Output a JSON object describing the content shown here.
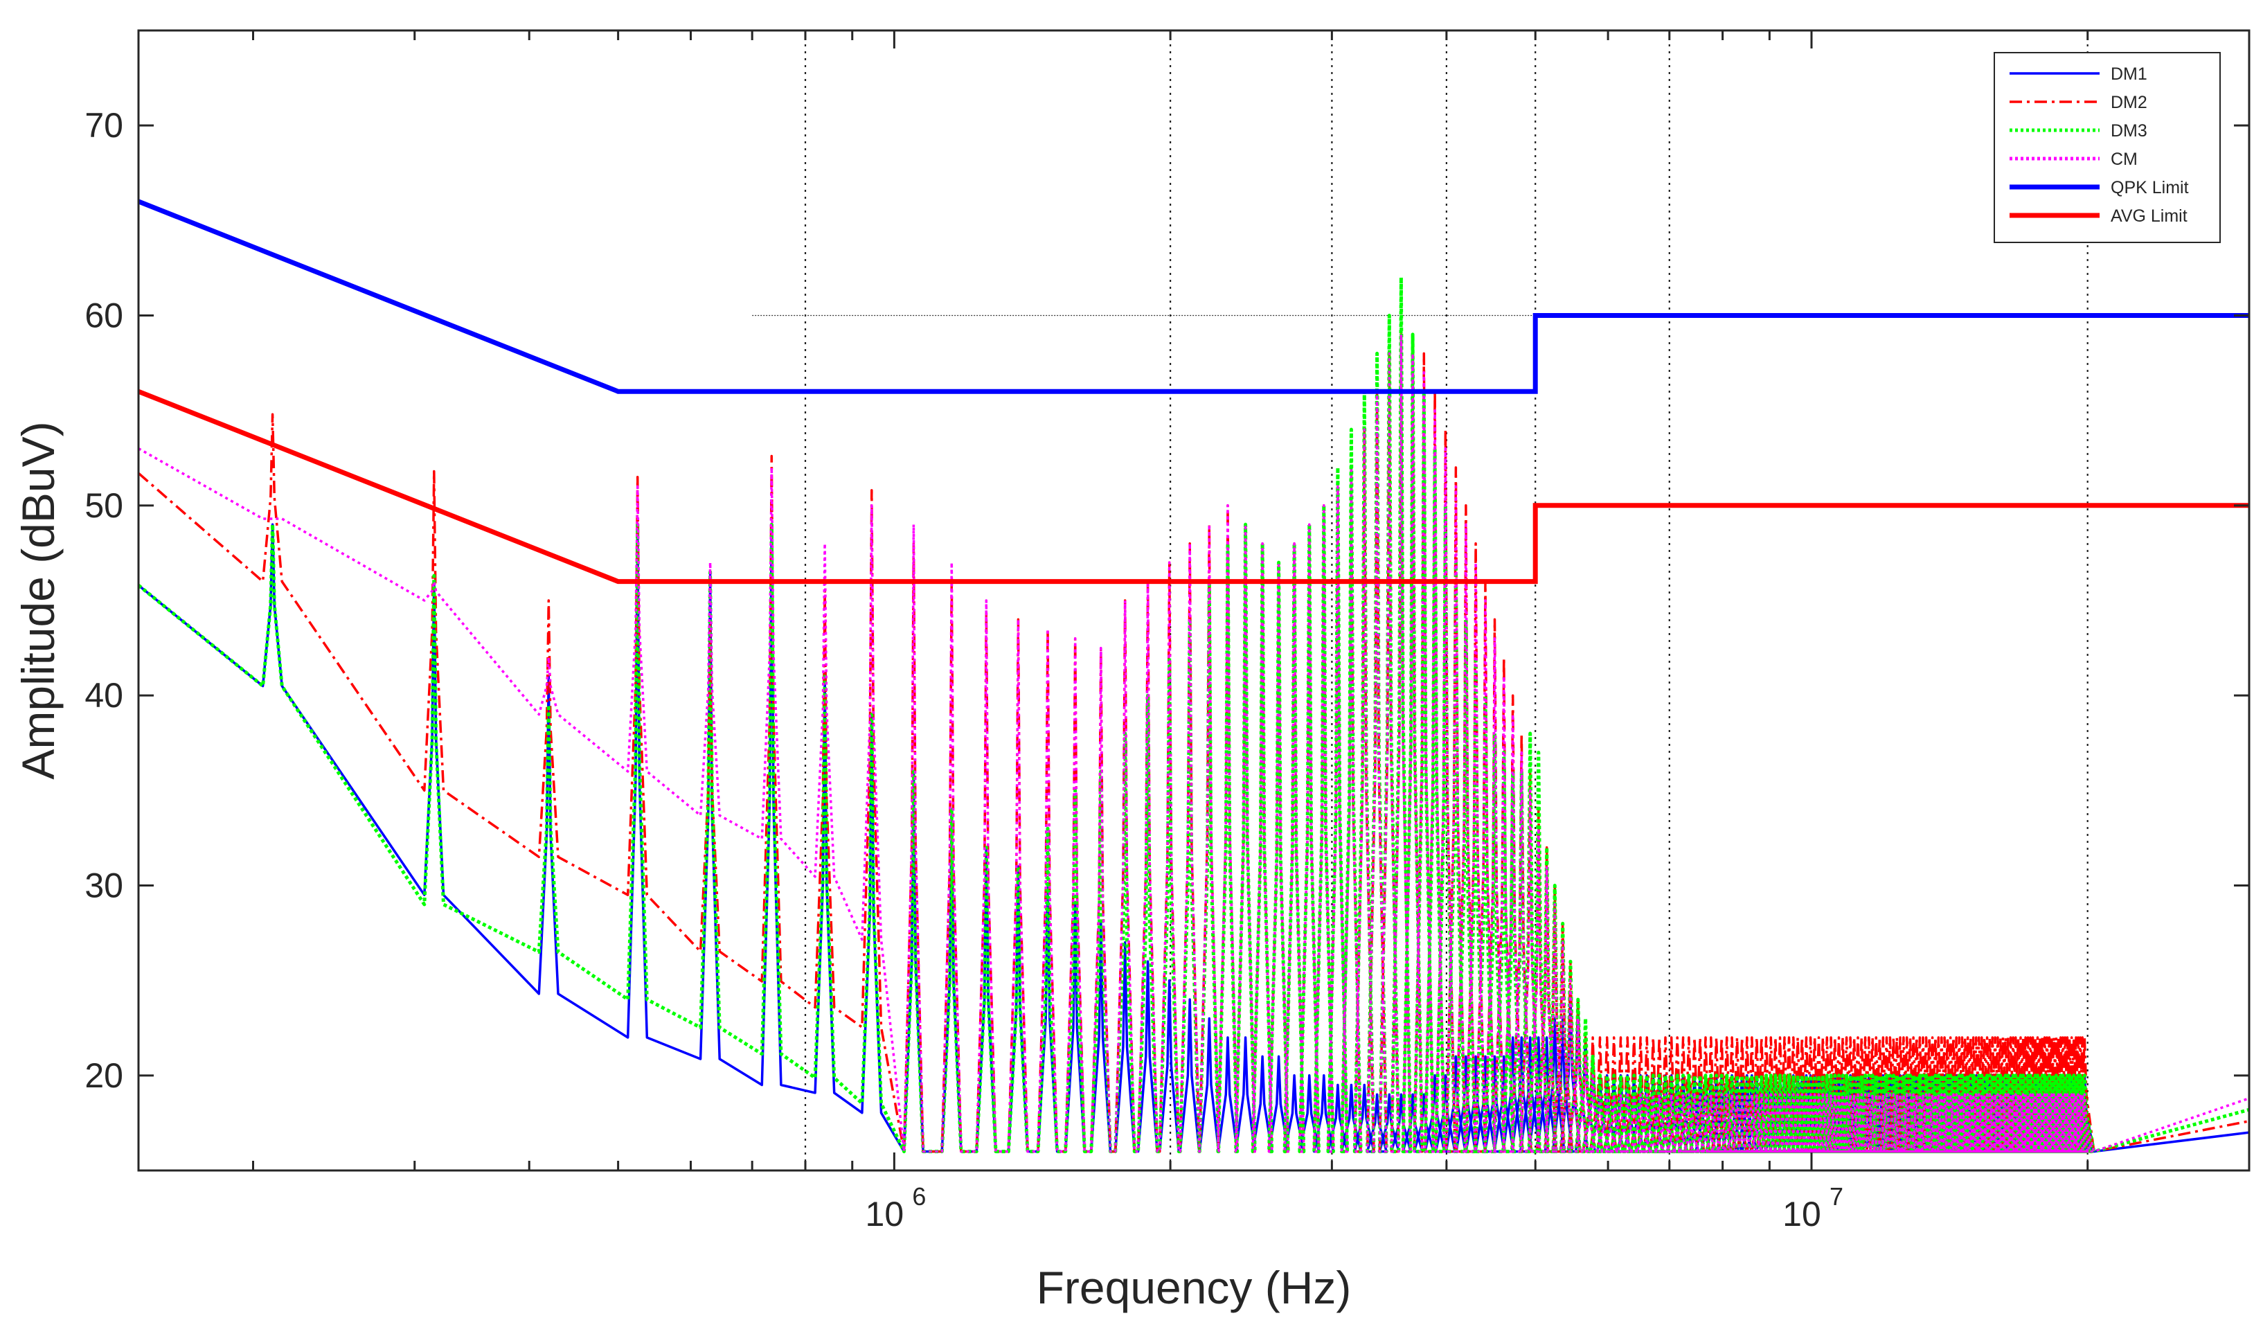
{
  "chart_data": {
    "type": "line",
    "xscale": "log",
    "xlim": [
      150000,
      30000000
    ],
    "ylim": [
      15,
      75
    ],
    "xlabel": "Frequency (Hz)",
    "ylabel": "Amplitude (dBuV)",
    "grid": {
      "x_dotted_at": [
        800000,
        2000000,
        3000000,
        4000000,
        5000000,
        7000000,
        20000000
      ]
    },
    "yticks": [
      20,
      30,
      40,
      50,
      60,
      70
    ],
    "ytick_labels": [
      "20",
      "30",
      "40",
      "50",
      "60",
      "70"
    ],
    "xtick_labels": [
      {
        "value": 1000000,
        "base": "10",
        "exp": "6"
      },
      {
        "value": 10000000,
        "base": "10",
        "exp": "7"
      }
    ],
    "legend": {
      "position": "top-right",
      "entries": [
        {
          "label": "DM1",
          "color": "#0000ff",
          "style": "solid",
          "width": "thin"
        },
        {
          "label": "DM2",
          "color": "#ff0000",
          "style": "dashdot",
          "width": "thin"
        },
        {
          "label": "DM3",
          "color": "#00ff00",
          "style": "dotted",
          "width": "thin"
        },
        {
          "label": "CM",
          "color": "#ff00ff",
          "style": "dotted",
          "width": "thin"
        },
        {
          "label": "QPK Limit",
          "color": "#0000ff",
          "style": "solid",
          "width": "thick"
        },
        {
          "label": "AVG Limit",
          "color": "#ff0000",
          "style": "solid",
          "width": "thick"
        }
      ]
    },
    "limits": [
      {
        "name": "QPK Limit",
        "color": "#0000ff",
        "x": [
          150000,
          500000,
          5000000,
          5000000,
          30000000
        ],
        "y": [
          66,
          56,
          56,
          60,
          60
        ]
      },
      {
        "name": "AVG Limit",
        "color": "#ff0000",
        "x": [
          150000,
          500000,
          5000000,
          5000000,
          30000000
        ],
        "y": [
          56,
          46,
          46,
          50,
          50
        ]
      }
    ],
    "reference_line": {
      "x": [
        700000,
        5000000
      ],
      "y": [
        60,
        60
      ]
    },
    "fundamental_hz": 105000,
    "harmonic_peaks": {
      "frequencies_hz": [
        210000,
        315000,
        420000,
        525000,
        630000,
        735000,
        840000,
        945000,
        1050000,
        1155000,
        1260000,
        1365000,
        1470000,
        1575000,
        1680000,
        1785000,
        1890000,
        1995000,
        2100000,
        2205000,
        2310000,
        2415000,
        2520000,
        2625000,
        2730000,
        2835000,
        2940000,
        3045000,
        3150000,
        3255000,
        3360000,
        3465000,
        3570000,
        3675000,
        3780000,
        3885000,
        3990000,
        4095000,
        4200000,
        4305000,
        4410000,
        4515000,
        4620000,
        4725000,
        4830000,
        4935000,
        5040000,
        5145000,
        5250000,
        5355000,
        5460000,
        5565000,
        5670000,
        5775000,
        5880000,
        5985000,
        6090000,
        6195000,
        6300000,
        6405000,
        6510000,
        6615000,
        6720000,
        6825000,
        6930000,
        7035000,
        7140000,
        7245000,
        7350000,
        7455000,
        7560000,
        7665000,
        7770000,
        7875000,
        7980000,
        8085000,
        8190000,
        8295000,
        8400000,
        8505000,
        8610000,
        8715000,
        8820000,
        8925000,
        9030000,
        9135000,
        9240000,
        9345000,
        9450000,
        9555000,
        9660000,
        9765000,
        9870000,
        9975000,
        10080000,
        10185000,
        10290000,
        10395000,
        10500000,
        10605000,
        10710000,
        10815000,
        10920000,
        11025000,
        11130000,
        11235000,
        11340000,
        11445000,
        11550000,
        11655000,
        11760000,
        11865000,
        11970000,
        12075000,
        12180000,
        12285000,
        12390000,
        12495000,
        12600000,
        12705000,
        12810000,
        12915000,
        13020000,
        13125000,
        13230000,
        13335000,
        13440000,
        13545000,
        13650000,
        13755000,
        13860000,
        13965000,
        14070000,
        14175000,
        14280000,
        14385000,
        14490000,
        14595000,
        14700000,
        14805000,
        14910000,
        15015000,
        15120000,
        15225000,
        15330000,
        15435000,
        15540000,
        15645000,
        15750000,
        15855000,
        15960000,
        16065000,
        16170000,
        16275000,
        16380000,
        16485000,
        16590000,
        16695000,
        16800000,
        16905000,
        17010000,
        17115000,
        17220000,
        17325000,
        17430000,
        17535000,
        17640000,
        17745000,
        17850000,
        17955000,
        18060000,
        18165000,
        18270000,
        18375000,
        18480000,
        18585000,
        18690000,
        18795000,
        18900000,
        19005000,
        19110000,
        19215000,
        19320000,
        19425000,
        19530000,
        19635000,
        19740000,
        19845000
      ],
      "note": "peak amplitudes listed per series below, sampled every harmonic"
    },
    "series": [
      {
        "name": "DM1",
        "color": "#0000ff",
        "floor_x": [
          150000,
          200000,
          210000,
          230000,
          300000,
          315000,
          340000,
          400000,
          420000,
          500000,
          525000,
          600000,
          700000,
          800000,
          900000,
          1000000
        ],
        "floor_y": [
          45.8,
          39.5,
          40.5,
          37,
          29,
          29.5,
          26,
          25.3,
          24.3,
          23.2,
          22,
          21.5,
          19.5,
          19.5,
          18.5,
          17.5
        ],
        "peaks_y": [
          49,
          46,
          41,
          49,
          46.5,
          49,
          41,
          39,
          36,
          34,
          32,
          31,
          30,
          29,
          28,
          27,
          26,
          25,
          24,
          23,
          22,
          22,
          21,
          21,
          20,
          20,
          20,
          19.5,
          19.5,
          19.5,
          19,
          19,
          19,
          19,
          19,
          20,
          20,
          21,
          21,
          21,
          21,
          21,
          21,
          22,
          22,
          22,
          22,
          22,
          23,
          23,
          24,
          24,
          22,
          21,
          20
        ]
      },
      {
        "name": "DM2",
        "color": "#ff0000",
        "floor_x": [
          150000,
          200000,
          210000,
          230000,
          300000,
          315000,
          340000,
          400000,
          420000,
          500000,
          525000,
          600000,
          700000,
          800000,
          900000,
          1000000
        ],
        "floor_y": [
          51.7,
          45.5,
          46,
          43,
          34.5,
          35,
          32.5,
          32,
          31.5,
          30.7,
          29.5,
          27,
          25.5,
          24,
          23,
          22
        ],
        "peaks_y": [
          54.8,
          51.8,
          45,
          51.5,
          43.7,
          52.6,
          45.5,
          50.8,
          48,
          46,
          44.5,
          44,
          43.5,
          43,
          42.5,
          45,
          46,
          47,
          48,
          49,
          50,
          49,
          48,
          47,
          48,
          49,
          50,
          51,
          52,
          54,
          56,
          58,
          59,
          59,
          58,
          56,
          54,
          52,
          50,
          48,
          46,
          44,
          42,
          40,
          38,
          36,
          34,
          32,
          30,
          28,
          26,
          24,
          22,
          22,
          22
        ]
      },
      {
        "name": "DM3",
        "color": "#00ff00",
        "floor_x": [
          150000,
          200000,
          210000,
          230000,
          300000,
          315000,
          340000,
          400000,
          420000,
          500000,
          525000,
          600000,
          700000,
          800000,
          900000,
          1000000
        ],
        "floor_y": [
          45.8,
          39.5,
          40.5,
          36.5,
          28.5,
          29,
          27.5,
          27.5,
          26.5,
          26,
          24,
          23,
          21.5,
          20.5,
          19,
          18
        ],
        "peaks_y": [
          49,
          46.3,
          39.5,
          49,
          46.5,
          49,
          41,
          39,
          36,
          34,
          32,
          31,
          33,
          35,
          36,
          38,
          40,
          42,
          44,
          46,
          48,
          49,
          48,
          47,
          48,
          49,
          50,
          52,
          54,
          56,
          58,
          60,
          62,
          59,
          56,
          53,
          50,
          47,
          44,
          42,
          40,
          38,
          37,
          36,
          36,
          38,
          37,
          32,
          30,
          28,
          26,
          24,
          23,
          21,
          20
        ]
      },
      {
        "name": "CM",
        "color": "#ff00ff",
        "floor_x": [
          150000,
          200000,
          210000,
          230000,
          300000,
          315000,
          340000,
          400000,
          420000,
          500000,
          525000,
          600000,
          700000,
          800000,
          900000,
          1000000
        ],
        "floor_y": [
          53,
          49.5,
          49.3,
          48,
          45.5,
          45,
          43,
          40,
          39,
          37,
          36,
          34,
          33,
          31.5,
          29,
          25
        ],
        "peaks_y": [
          49.3,
          46,
          42,
          51,
          47,
          52,
          48,
          50,
          49,
          47,
          45,
          44,
          43.5,
          43,
          42.5,
          45,
          46,
          47,
          48,
          49,
          50,
          49,
          48,
          47,
          48,
          49,
          50,
          51,
          52,
          54,
          56,
          58,
          59,
          58,
          57,
          55,
          53,
          51,
          49,
          47,
          45,
          43,
          41,
          39,
          37,
          35,
          33,
          31,
          29,
          27,
          25,
          23,
          21,
          20,
          19
        ]
      }
    ]
  }
}
